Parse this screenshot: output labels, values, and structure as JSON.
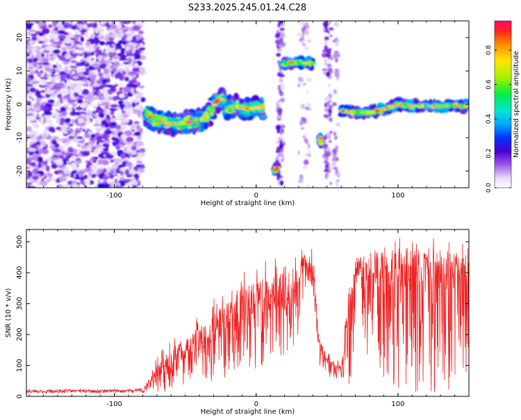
{
  "title": "S233.2025.245.01.24.C28",
  "chart_data": [
    {
      "type": "heatmap",
      "xlabel": "Height of straight line (km)",
      "ylabel": "Frequency (Hz)",
      "xlim": [
        -162,
        150
      ],
      "ylim": [
        -25,
        25
      ],
      "xticks": [
        -100,
        0,
        100
      ],
      "yticks": [
        -20,
        -10,
        0,
        10,
        20
      ],
      "colorbar": {
        "label": "Normalized spectral amplitude",
        "range": [
          0,
          0.97
        ],
        "ticks": [
          0.0,
          0.2,
          0.4,
          0.6,
          0.8
        ]
      },
      "ridges": [
        {
          "name": "main-left",
          "points": [
            [
              -78,
              -3
            ],
            [
              -70,
              -5
            ],
            [
              -60,
              -6
            ],
            [
              -50,
              -5.5
            ],
            [
              -40,
              -5
            ],
            [
              -33,
              -3
            ],
            [
              -28,
              1
            ],
            [
              -24,
              1.5
            ],
            [
              -20,
              -1
            ],
            [
              -15,
              -0.5
            ],
            [
              -10,
              -1
            ],
            [
              -5,
              -1.5
            ],
            [
              0,
              -1
            ],
            [
              5,
              -1
            ]
          ]
        },
        {
          "name": "upper-burst",
          "points": [
            [
              18,
              12
            ],
            [
              25,
              12.5
            ],
            [
              32,
              12.5
            ],
            [
              40,
              12
            ]
          ]
        },
        {
          "name": "main-right",
          "points": [
            [
              60,
              -2
            ],
            [
              70,
              -2.5
            ],
            [
              80,
              -2.5
            ],
            [
              90,
              -1.5
            ],
            [
              100,
              0
            ],
            [
              110,
              -0.5
            ],
            [
              120,
              -0.5
            ],
            [
              130,
              -0.5
            ],
            [
              140,
              -0.5
            ],
            [
              150,
              -0.5
            ]
          ]
        },
        {
          "name": "low-blob",
          "points": [
            [
              13,
              -20
            ],
            [
              15,
              -19
            ]
          ]
        },
        {
          "name": "mid-blob",
          "points": [
            [
              45,
              -10
            ],
            [
              46,
              -12
            ]
          ]
        }
      ]
    },
    {
      "type": "line",
      "xlabel": "Height of straight line (km)",
      "ylabel": "SNR (10 * v/v)",
      "xlim": [
        -162,
        150
      ],
      "ylim": [
        0,
        540
      ],
      "xticks": [
        -100,
        0,
        100
      ],
      "yticks": [
        0,
        100,
        200,
        300,
        400,
        500
      ],
      "series": [
        {
          "name": "SNR",
          "color": "#ee2222",
          "x": [
            -162,
            -150,
            -140,
            -130,
            -120,
            -110,
            -100,
            -90,
            -80,
            -75,
            -70,
            -65,
            -60,
            -55,
            -50,
            -45,
            -40,
            -35,
            -30,
            -25,
            -20,
            -15,
            -10,
            -5,
            0,
            5,
            10,
            15,
            20,
            25,
            30,
            35,
            40,
            45,
            50,
            55,
            60,
            62,
            65,
            70,
            75,
            80,
            90,
            100,
            110,
            120,
            130,
            140,
            150
          ],
          "values": [
            18,
            18,
            20,
            20,
            19,
            19,
            20,
            20,
            22,
            50,
            90,
            110,
            120,
            140,
            160,
            170,
            190,
            210,
            220,
            240,
            260,
            280,
            300,
            300,
            310,
            320,
            330,
            340,
            340,
            320,
            380,
            440,
            420,
            160,
            120,
            100,
            90,
            150,
            300,
            410,
            420,
            430,
            420,
            420,
            420,
            420,
            420,
            420,
            410
          ],
          "spread": [
            8,
            8,
            8,
            8,
            8,
            8,
            8,
            8,
            10,
            40,
            70,
            90,
            100,
            110,
            120,
            130,
            140,
            150,
            160,
            170,
            180,
            190,
            190,
            190,
            200,
            200,
            200,
            200,
            200,
            200,
            180,
            90,
            90,
            60,
            50,
            40,
            40,
            80,
            160,
            80,
            100,
            150,
            160,
            170,
            170,
            170,
            170,
            170,
            160
          ]
        }
      ]
    }
  ]
}
